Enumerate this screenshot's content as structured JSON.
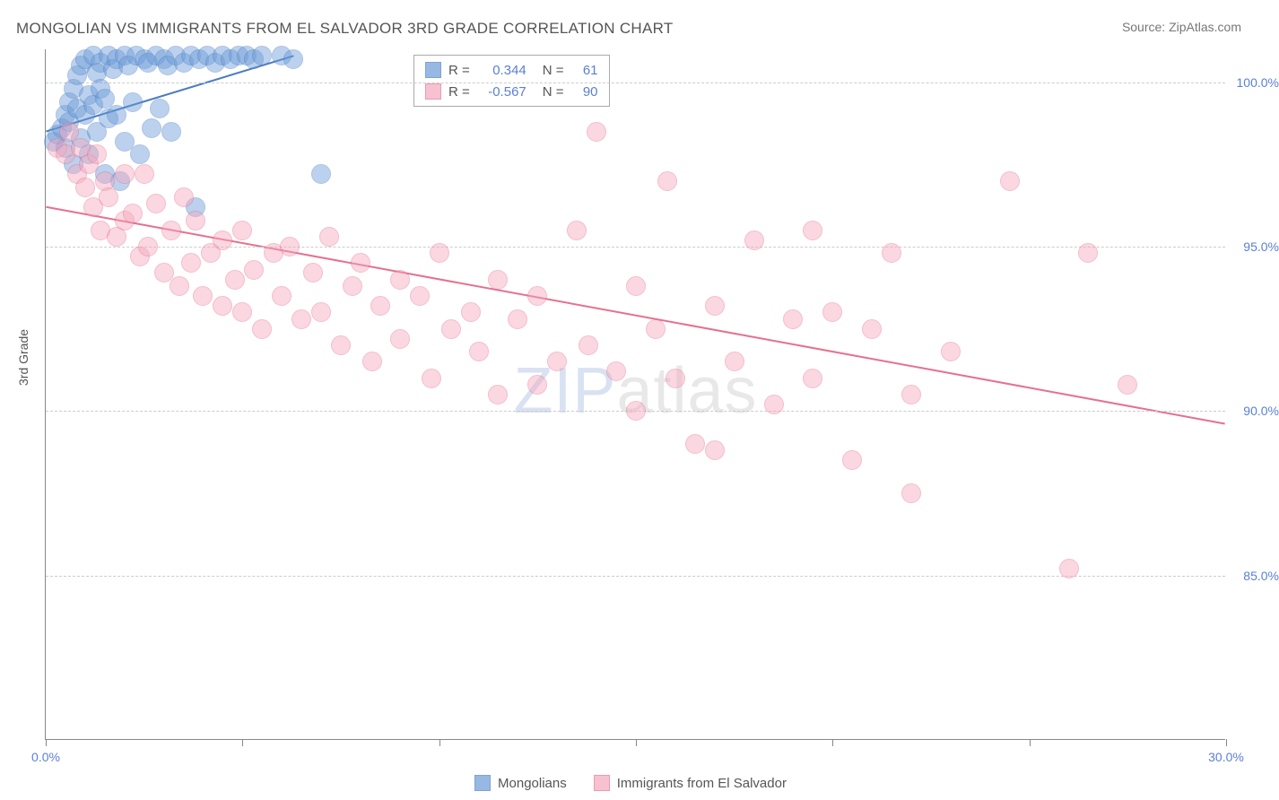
{
  "title": "MONGOLIAN VS IMMIGRANTS FROM EL SALVADOR 3RD GRADE CORRELATION CHART",
  "source": "Source: ZipAtlas.com",
  "ylabel": "3rd Grade",
  "watermark_a": "ZIP",
  "watermark_b": "atlas",
  "chart": {
    "type": "scatter",
    "background_color": "#ffffff",
    "grid_color": "#cccccc",
    "axis_color": "#888888",
    "label_color": "#5b7fd6",
    "text_color": "#555555",
    "xlim": [
      0,
      30
    ],
    "ylim": [
      80,
      101
    ],
    "xtick_step": 5,
    "xtick_labels": [
      "0.0%",
      "30.0%"
    ],
    "ytick_step": 5,
    "ytick_labels": [
      "85.0%",
      "90.0%",
      "95.0%",
      "100.0%"
    ],
    "marker_radius": 11,
    "marker_opacity": 0.45,
    "trend_width": 2,
    "series": [
      {
        "name": "Mongolians",
        "color": "#6b9bd8",
        "stroke": "#4a7cc0",
        "r": 0.344,
        "n": 61,
        "trend": {
          "x1": 0,
          "y1": 98.5,
          "x2": 6.3,
          "y2": 100.8
        },
        "points": [
          [
            0.2,
            98.2
          ],
          [
            0.3,
            98.4
          ],
          [
            0.4,
            98.6
          ],
          [
            0.5,
            99.0
          ],
          [
            0.5,
            98.0
          ],
          [
            0.6,
            99.4
          ],
          [
            0.6,
            98.8
          ],
          [
            0.7,
            99.8
          ],
          [
            0.7,
            97.5
          ],
          [
            0.8,
            100.2
          ],
          [
            0.8,
            99.2
          ],
          [
            0.9,
            100.5
          ],
          [
            0.9,
            98.3
          ],
          [
            1.0,
            100.7
          ],
          [
            1.0,
            99.0
          ],
          [
            1.1,
            99.6
          ],
          [
            1.1,
            97.8
          ],
          [
            1.2,
            100.8
          ],
          [
            1.2,
            99.3
          ],
          [
            1.3,
            100.3
          ],
          [
            1.3,
            98.5
          ],
          [
            1.4,
            99.8
          ],
          [
            1.4,
            100.6
          ],
          [
            1.5,
            97.2
          ],
          [
            1.5,
            99.5
          ],
          [
            1.6,
            100.8
          ],
          [
            1.6,
            98.9
          ],
          [
            1.7,
            100.4
          ],
          [
            1.8,
            99.0
          ],
          [
            1.8,
            100.7
          ],
          [
            1.9,
            97.0
          ],
          [
            2.0,
            100.8
          ],
          [
            2.0,
            98.2
          ],
          [
            2.1,
            100.5
          ],
          [
            2.2,
            99.4
          ],
          [
            2.3,
            100.8
          ],
          [
            2.4,
            97.8
          ],
          [
            2.5,
            100.7
          ],
          [
            2.6,
            100.6
          ],
          [
            2.7,
            98.6
          ],
          [
            2.8,
            100.8
          ],
          [
            2.9,
            99.2
          ],
          [
            3.0,
            100.7
          ],
          [
            3.1,
            100.5
          ],
          [
            3.2,
            98.5
          ],
          [
            3.3,
            100.8
          ],
          [
            3.5,
            100.6
          ],
          [
            3.7,
            100.8
          ],
          [
            3.8,
            96.2
          ],
          [
            3.9,
            100.7
          ],
          [
            4.1,
            100.8
          ],
          [
            4.3,
            100.6
          ],
          [
            4.5,
            100.8
          ],
          [
            4.7,
            100.7
          ],
          [
            4.9,
            100.8
          ],
          [
            5.1,
            100.8
          ],
          [
            5.3,
            100.7
          ],
          [
            5.5,
            100.8
          ],
          [
            6.0,
            100.8
          ],
          [
            6.3,
            100.7
          ],
          [
            7.0,
            97.2
          ]
        ]
      },
      {
        "name": "Immigrants from El Salvador",
        "color": "#f5a8be",
        "stroke": "#e5718f",
        "r": -0.567,
        "n": 90,
        "trend": {
          "x1": 0,
          "y1": 96.2,
          "x2": 30,
          "y2": 89.6
        },
        "points": [
          [
            0.3,
            98.0
          ],
          [
            0.5,
            97.8
          ],
          [
            0.6,
            98.5
          ],
          [
            0.8,
            97.2
          ],
          [
            0.9,
            98.0
          ],
          [
            1.0,
            96.8
          ],
          [
            1.1,
            97.5
          ],
          [
            1.2,
            96.2
          ],
          [
            1.3,
            97.8
          ],
          [
            1.4,
            95.5
          ],
          [
            1.5,
            97.0
          ],
          [
            1.6,
            96.5
          ],
          [
            1.8,
            95.3
          ],
          [
            2.0,
            97.2
          ],
          [
            2.0,
            95.8
          ],
          [
            2.2,
            96.0
          ],
          [
            2.4,
            94.7
          ],
          [
            2.5,
            97.2
          ],
          [
            2.6,
            95.0
          ],
          [
            2.8,
            96.3
          ],
          [
            3.0,
            94.2
          ],
          [
            3.2,
            95.5
          ],
          [
            3.4,
            93.8
          ],
          [
            3.5,
            96.5
          ],
          [
            3.7,
            94.5
          ],
          [
            3.8,
            95.8
          ],
          [
            4.0,
            93.5
          ],
          [
            4.2,
            94.8
          ],
          [
            4.5,
            95.2
          ],
          [
            4.5,
            93.2
          ],
          [
            4.8,
            94.0
          ],
          [
            5.0,
            95.5
          ],
          [
            5.0,
            93.0
          ],
          [
            5.3,
            94.3
          ],
          [
            5.5,
            92.5
          ],
          [
            5.8,
            94.8
          ],
          [
            6.0,
            93.5
          ],
          [
            6.2,
            95.0
          ],
          [
            6.5,
            92.8
          ],
          [
            6.8,
            94.2
          ],
          [
            7.0,
            93.0
          ],
          [
            7.2,
            95.3
          ],
          [
            7.5,
            92.0
          ],
          [
            7.8,
            93.8
          ],
          [
            8.0,
            94.5
          ],
          [
            8.3,
            91.5
          ],
          [
            8.5,
            93.2
          ],
          [
            9.0,
            94.0
          ],
          [
            9.0,
            92.2
          ],
          [
            9.5,
            93.5
          ],
          [
            9.8,
            91.0
          ],
          [
            10.0,
            94.8
          ],
          [
            10.3,
            92.5
          ],
          [
            10.8,
            93.0
          ],
          [
            11.0,
            91.8
          ],
          [
            11.5,
            94.0
          ],
          [
            11.5,
            90.5
          ],
          [
            12.0,
            92.8
          ],
          [
            12.5,
            93.5
          ],
          [
            12.5,
            90.8
          ],
          [
            13.0,
            91.5
          ],
          [
            13.5,
            95.5
          ],
          [
            13.8,
            92.0
          ],
          [
            14.0,
            98.5
          ],
          [
            14.5,
            91.2
          ],
          [
            15.0,
            93.8
          ],
          [
            15.0,
            90.0
          ],
          [
            15.5,
            92.5
          ],
          [
            15.8,
            97.0
          ],
          [
            16.0,
            91.0
          ],
          [
            16.5,
            89.0
          ],
          [
            17.0,
            93.2
          ],
          [
            17.0,
            88.8
          ],
          [
            17.5,
            91.5
          ],
          [
            18.0,
            95.2
          ],
          [
            18.5,
            90.2
          ],
          [
            19.0,
            92.8
          ],
          [
            19.5,
            95.5
          ],
          [
            19.5,
            91.0
          ],
          [
            20.0,
            93.0
          ],
          [
            20.5,
            88.5
          ],
          [
            21.0,
            92.5
          ],
          [
            21.5,
            94.8
          ],
          [
            22.0,
            90.5
          ],
          [
            22.0,
            87.5
          ],
          [
            23.0,
            91.8
          ],
          [
            24.5,
            97.0
          ],
          [
            26.0,
            85.2
          ],
          [
            26.5,
            94.8
          ],
          [
            27.5,
            90.8
          ]
        ]
      }
    ]
  },
  "stats_labels": {
    "r": "R =",
    "n": "N ="
  },
  "legend": [
    "Mongolians",
    "Immigrants from El Salvador"
  ]
}
